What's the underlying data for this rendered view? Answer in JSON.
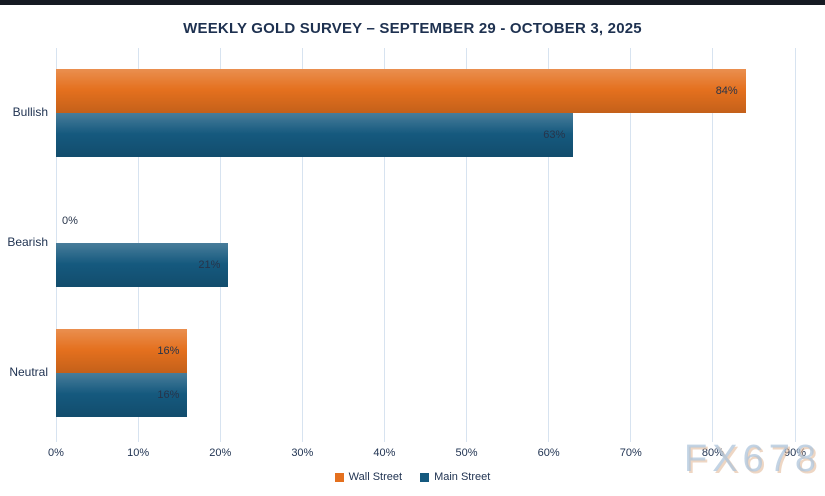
{
  "title": "WEEKLY GOLD SURVEY – SEPTEMBER 29 - OCTOBER 3, 2025",
  "watermark": "FX678",
  "colors": {
    "top_bar": "#151a22",
    "title_text": "#1e3150",
    "gridline": "#d7e3f0",
    "wall_street": "#e4701e",
    "main_street": "#15597e"
  },
  "legend": [
    {
      "label": "Wall Street",
      "color": "#e4701e"
    },
    {
      "label": "Main Street",
      "color": "#15597e"
    }
  ],
  "chart_data": {
    "type": "bar",
    "orientation": "horizontal",
    "title": "WEEKLY GOLD SURVEY – SEPTEMBER 29 - OCTOBER 3, 2025",
    "categories": [
      "Bullish",
      "Bearish",
      "Neutral"
    ],
    "series": [
      {
        "name": "Wall Street",
        "color": "#e4701e",
        "values": [
          84,
          0,
          16
        ],
        "labels": [
          "84%",
          "0%",
          "16%"
        ]
      },
      {
        "name": "Main Street",
        "color": "#15597e",
        "values": [
          63,
          21,
          16
        ],
        "labels": [
          "63%",
          "21%",
          "16%"
        ]
      }
    ],
    "x_ticks": [
      "0%",
      "10%",
      "20%",
      "30%",
      "40%",
      "50%",
      "60%",
      "70%",
      "80%",
      "90%"
    ],
    "xlim": [
      0,
      90
    ],
    "grid": true,
    "legend_position": "bottom"
  }
}
